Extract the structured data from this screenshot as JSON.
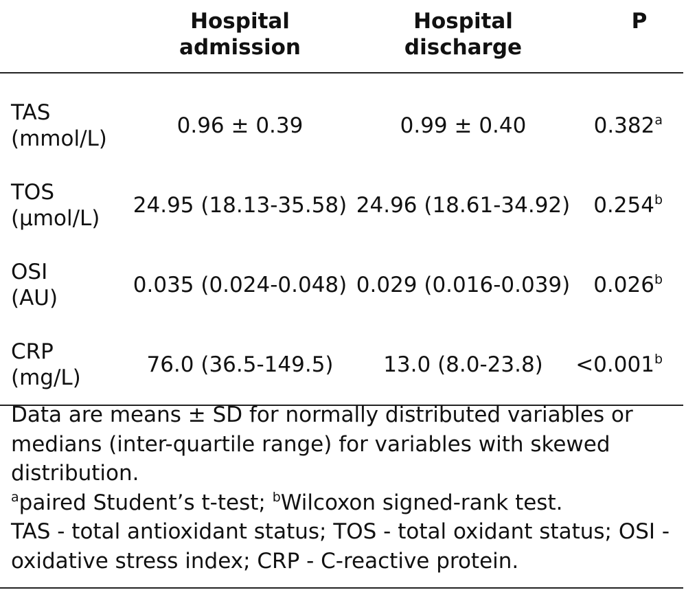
{
  "table": {
    "headers": [
      "",
      "Hospital\nadmission",
      "Hospital\ndischarge",
      "P"
    ],
    "rows": [
      {
        "label_line1": "TAS",
        "label_line2": "(mmol/L)",
        "admission": "0.96 ± 0.39",
        "discharge": "0.99 ± 0.40",
        "p": "0.382",
        "p_sup": "a"
      },
      {
        "label_line1": "TOS",
        "label_line2": "(μmol/L)",
        "admission": "24.95 (18.13-35.58)",
        "discharge": "24.96 (18.61-34.92)",
        "p": "0.254",
        "p_sup": "b"
      },
      {
        "label_line1": "OSI",
        "label_line2": "(AU)",
        "admission": "0.035 (0.024-0.048)",
        "discharge": "0.029 (0.016-0.039)",
        "p": "0.026",
        "p_sup": "b"
      },
      {
        "label_line1": "CRP",
        "label_line2": "(mg/L)",
        "admission": "76.0 (36.5-149.5)",
        "discharge": "13.0 (8.0-23.8)",
        "p": "<0.001",
        "p_sup": "b"
      }
    ]
  },
  "notes": {
    "line1": "Data are means ± SD for normally distributed variables or medians (inter-quartile range) for variables with skewed distribution.",
    "footnote_a_mark": "a",
    "footnote_a_text": "paired Student’s t-test; ",
    "footnote_b_mark": "b",
    "footnote_b_text": "Wilcoxon signed-rank test.",
    "abbreviations": "TAS - total antioxidant status; TOS - total oxidant status; OSI - oxidative stress index; CRP - C-reactive protein."
  }
}
